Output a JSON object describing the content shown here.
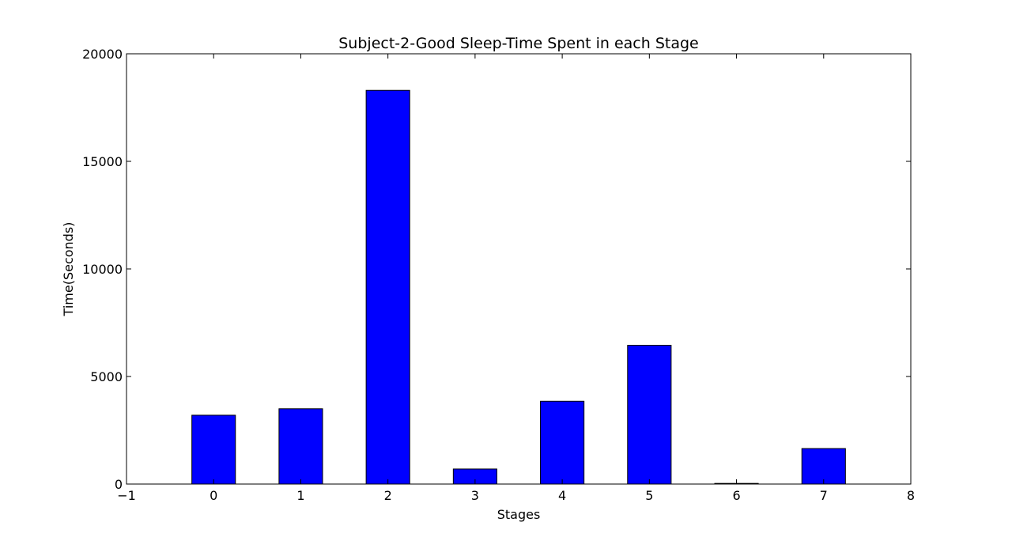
{
  "chart_data": {
    "type": "bar",
    "title": "Subject-2-Good Sleep-Time Spent in each Stage",
    "xlabel": "Stages",
    "ylabel": "Time(Seconds)",
    "categories": [
      0,
      1,
      2,
      3,
      4,
      5,
      6,
      7
    ],
    "values": [
      3200,
      3500,
      18300,
      700,
      3850,
      6450,
      30,
      1650
    ],
    "bar_width": 0.5,
    "xlim": [
      -1,
      8
    ],
    "ylim": [
      0,
      20000
    ],
    "xticks": [
      -1,
      0,
      1,
      2,
      3,
      4,
      5,
      6,
      7,
      8
    ],
    "yticks": [
      0,
      5000,
      10000,
      15000,
      20000
    ],
    "xtick_labels": [
      "−1",
      "0",
      "1",
      "2",
      "3",
      "4",
      "5",
      "6",
      "7",
      "8"
    ],
    "ytick_labels": [
      "0",
      "5000",
      "10000",
      "15000",
      "20000"
    ],
    "grid": false,
    "colors": {
      "bar_fill": "#0000ff",
      "bar_edge": "#000000",
      "axes": "#000000",
      "background": "#ffffff"
    }
  }
}
